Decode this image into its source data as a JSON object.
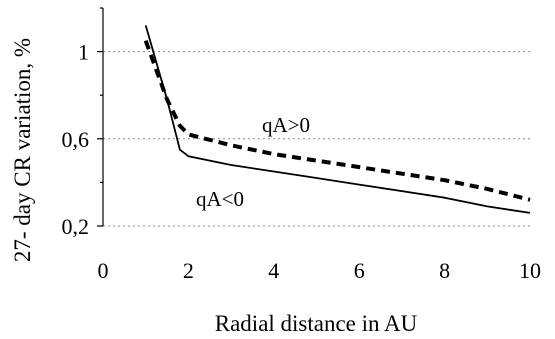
{
  "chart_data": {
    "type": "line",
    "xlabel": "Radial distance in AU",
    "ylabel": "27- day CR variation, %",
    "xlim": [
      0,
      10
    ],
    "ylim": [
      0.2,
      1.2
    ],
    "x_ticks": [
      0,
      2,
      4,
      6,
      8,
      10
    ],
    "x_tick_labels": [
      "0",
      "2",
      "4",
      "6",
      "8",
      "10"
    ],
    "y_ticks": [
      0.2,
      0.6,
      1.0
    ],
    "y_tick_labels": [
      "0,2",
      "0,6",
      "1"
    ],
    "grid": "horizontal",
    "series": [
      {
        "name": "qA<0",
        "style": "solid",
        "color": "#000000",
        "x": [
          1.0,
          1.5,
          1.8,
          2.0,
          3.0,
          4.0,
          5.0,
          6.0,
          7.0,
          8.0,
          9.0,
          10.0
        ],
        "y": [
          1.12,
          0.78,
          0.55,
          0.52,
          0.48,
          0.45,
          0.42,
          0.39,
          0.36,
          0.33,
          0.29,
          0.26
        ]
      },
      {
        "name": "qA>0",
        "style": "dashed",
        "color": "#000000",
        "x": [
          1.0,
          1.5,
          1.8,
          2.0,
          3.0,
          4.0,
          5.0,
          6.0,
          7.0,
          8.0,
          9.0,
          10.0
        ],
        "y": [
          1.05,
          0.78,
          0.66,
          0.62,
          0.57,
          0.53,
          0.5,
          0.47,
          0.44,
          0.41,
          0.37,
          0.32
        ]
      }
    ]
  }
}
